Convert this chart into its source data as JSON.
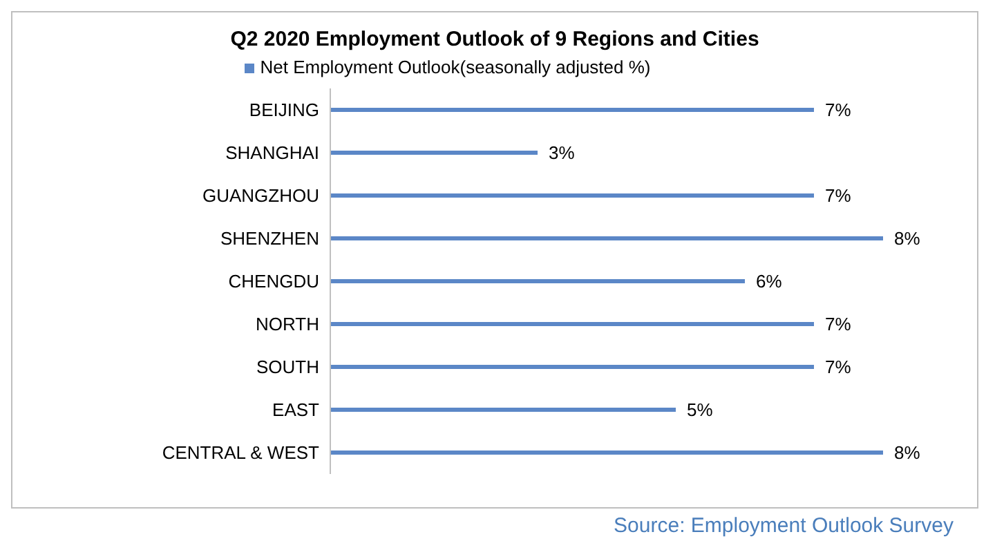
{
  "chart_data": {
    "type": "bar",
    "orientation": "horizontal",
    "title": "Q2 2020 Employment Outlook of 9 Regions and Cities",
    "categories": [
      "BEIJING",
      "SHANGHAI",
      "GUANGZHOU",
      "SHENZHEN",
      "CHENGDU",
      "NORTH",
      "SOUTH",
      "EAST",
      "CENTRAL & WEST"
    ],
    "series": [
      {
        "name": "Net Employment Outlook(seasonally adjusted %)",
        "color": "#5b87c7",
        "values": [
          7,
          3,
          7,
          8,
          6,
          7,
          7,
          5,
          8
        ],
        "value_labels": [
          "7%",
          "3%",
          "7%",
          "8%",
          "6%",
          "7%",
          "7%",
          "5%",
          "8%"
        ]
      }
    ],
    "legend": "top",
    "grid": false,
    "annotations": [
      "Source: Employment Outlook Survey"
    ]
  }
}
